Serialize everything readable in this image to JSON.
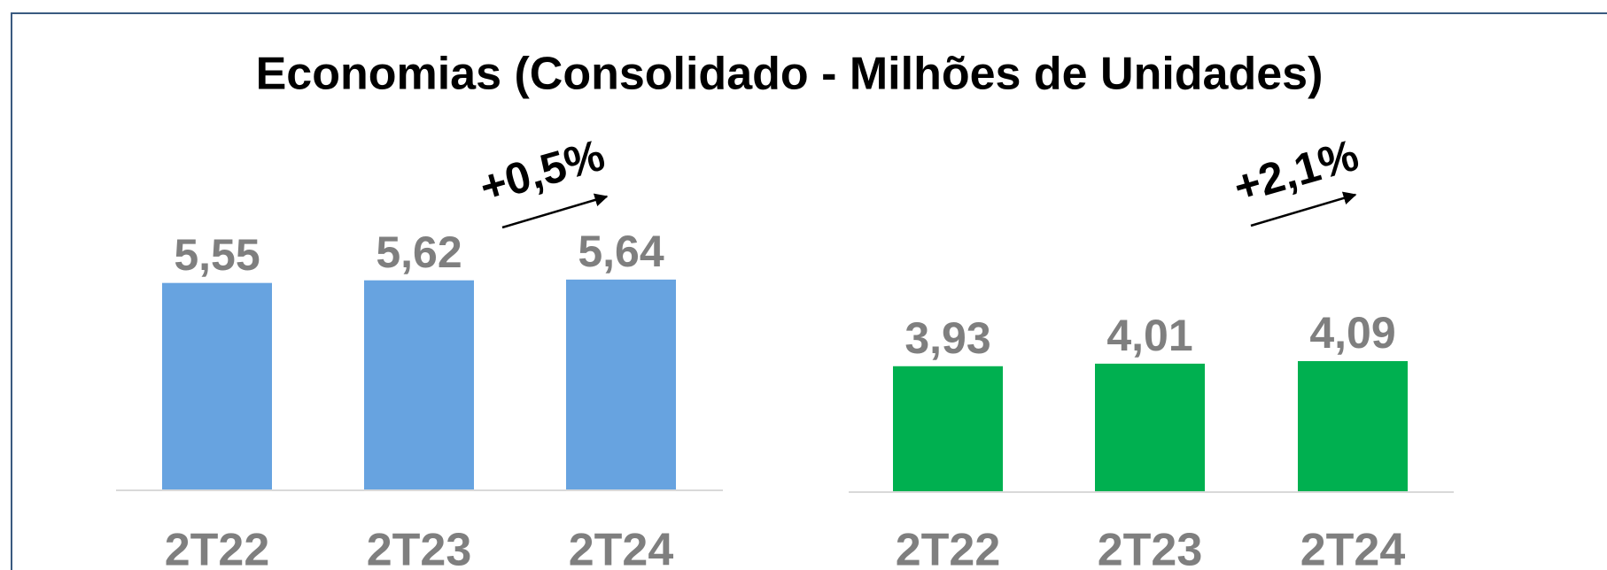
{
  "title": "Economias (Consolidado - Milhões de Unidades)",
  "chart_data": [
    {
      "type": "bar",
      "categories": [
        "2T22",
        "2T23",
        "2T24"
      ],
      "values": [
        5.55,
        5.62,
        5.64
      ],
      "value_labels": [
        "5,55",
        "5,62",
        "5,64"
      ],
      "color": "#67a3e0",
      "ylim": [
        0,
        9
      ],
      "annotation": "+0,5%"
    },
    {
      "type": "bar",
      "categories": [
        "2T22",
        "2T23",
        "2T24"
      ],
      "values": [
        3.93,
        4.01,
        4.09
      ],
      "value_labels": [
        "3,93",
        "4,01",
        "4,09"
      ],
      "color": "#00b050",
      "ylim": [
        0,
        10.5
      ],
      "annotation": "+2,1%"
    }
  ]
}
